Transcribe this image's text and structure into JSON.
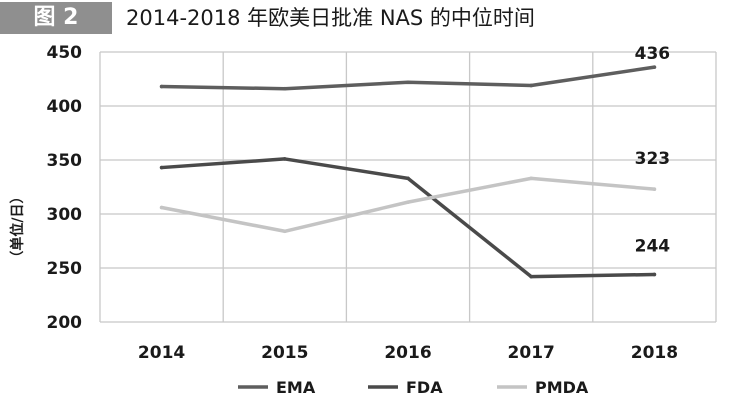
{
  "figure": {
    "label": "图 2",
    "title": "2014-2018 年欧美日批准 NAS 的中位时间"
  },
  "chart_data": {
    "type": "line",
    "title": "2014-2018 年欧美日批准 NAS 的中位时间",
    "xlabel": "",
    "ylabel": "（单位/日）",
    "categories": [
      "2014",
      "2015",
      "2016",
      "2017",
      "2018"
    ],
    "ylim": [
      200,
      450
    ],
    "yticks": [
      200,
      250,
      300,
      350,
      400,
      450
    ],
    "grid": true,
    "legend_position": "bottom",
    "series": [
      {
        "name": "EMA",
        "values": [
          418,
          416,
          422,
          419,
          436
        ],
        "color": "#5e5e5e"
      },
      {
        "name": "FDA",
        "values": [
          343,
          351,
          333,
          242,
          244
        ],
        "color": "#4a4a4a"
      },
      {
        "name": "PMDA",
        "values": [
          306,
          284,
          311,
          333,
          323
        ],
        "color": "#c4c4c4"
      }
    ],
    "annotations": [
      {
        "series": "EMA",
        "category": "2018",
        "text": "436"
      },
      {
        "series": "PMDA",
        "category": "2018",
        "text": "323"
      },
      {
        "series": "FDA",
        "category": "2018",
        "text": "244"
      }
    ]
  }
}
